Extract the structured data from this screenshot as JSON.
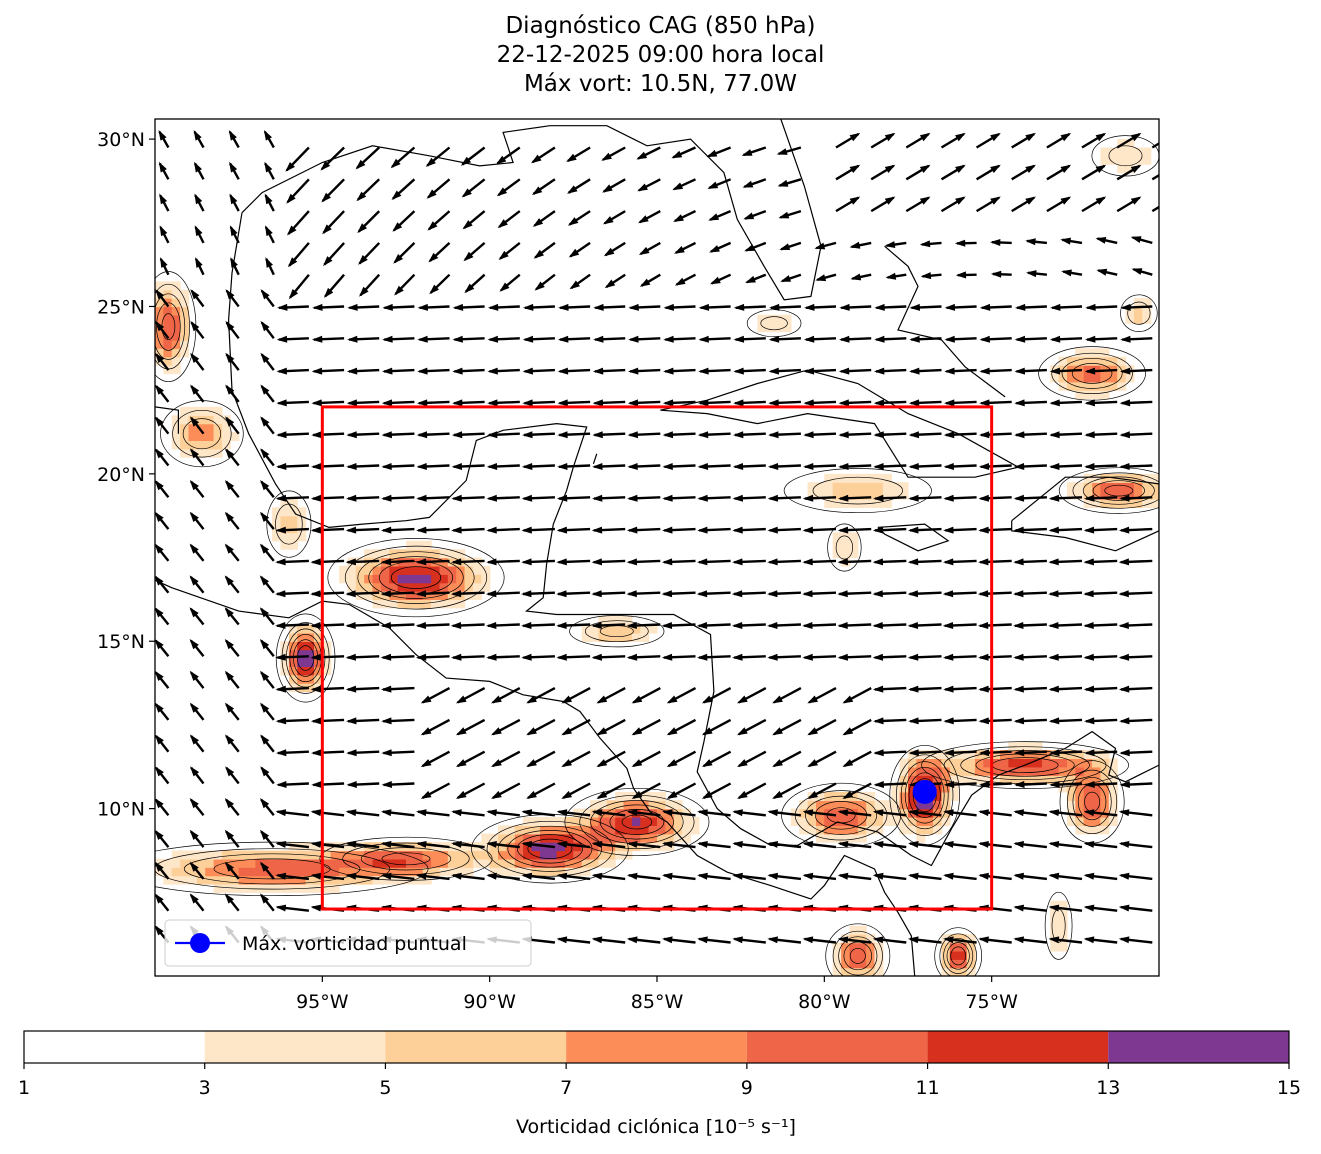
{
  "title": {
    "line1": "Diagnóstico CAG (850 hPa)",
    "line2": "22-12-2025 09:00 hora local",
    "line3": "Máx vort: 10.5N, 77.0W"
  },
  "map": {
    "lon_range": [
      -100,
      -70
    ],
    "lat_range": [
      5,
      30.6
    ],
    "x_ticks": [
      {
        "lon": -95,
        "label": "95°W"
      },
      {
        "lon": -90,
        "label": "90°W"
      },
      {
        "lon": -85,
        "label": "85°W"
      },
      {
        "lon": -80,
        "label": "80°W"
      },
      {
        "lon": -75,
        "label": "75°W"
      }
    ],
    "y_ticks": [
      {
        "lat": 30,
        "label": "30°N"
      },
      {
        "lat": 25,
        "label": "25°N"
      },
      {
        "lat": 20,
        "label": "20°N"
      },
      {
        "lat": 15,
        "label": "15°N"
      },
      {
        "lat": 10,
        "label": "10°N"
      }
    ],
    "box": {
      "lon_min": -95,
      "lon_max": -75,
      "lat_min": 7,
      "lat_max": 22,
      "color": "#ff0000"
    },
    "max_point": {
      "lat": 10.5,
      "lon": -77.0,
      "color": "#0000ff"
    },
    "legend_label": "Máx. vorticidad puntual"
  },
  "vorticity_blobs": [
    {
      "lon": -92.2,
      "lat": 16.9,
      "rx": 1.8,
      "ry": 0.8,
      "peak": 14
    },
    {
      "lon": -95.5,
      "lat": 14.5,
      "rx": 0.6,
      "ry": 0.9,
      "peak": 14
    },
    {
      "lon": -99.6,
      "lat": 24.4,
      "rx": 0.6,
      "ry": 1.2,
      "peak": 11
    },
    {
      "lon": -98.6,
      "lat": 21.2,
      "rx": 1.0,
      "ry": 0.8,
      "peak": 8
    },
    {
      "lon": -88.2,
      "lat": 8.8,
      "rx": 1.6,
      "ry": 0.7,
      "peak": 14
    },
    {
      "lon": -85.6,
      "lat": 9.6,
      "rx": 1.5,
      "ry": 0.7,
      "peak": 13
    },
    {
      "lon": -96.5,
      "lat": 8.2,
      "rx": 3.5,
      "ry": 0.6,
      "peak": 10
    },
    {
      "lon": -92.5,
      "lat": 8.5,
      "rx": 2.0,
      "ry": 0.5,
      "peak": 9
    },
    {
      "lon": -77.0,
      "lat": 10.4,
      "rx": 0.7,
      "ry": 1.0,
      "peak": 15
    },
    {
      "lon": -79.5,
      "lat": 9.8,
      "rx": 1.3,
      "ry": 0.7,
      "peak": 11
    },
    {
      "lon": -74.0,
      "lat": 11.3,
      "rx": 2.2,
      "ry": 0.5,
      "peak": 12
    },
    {
      "lon": -72.0,
      "lat": 10.2,
      "rx": 0.7,
      "ry": 0.9,
      "peak": 11
    },
    {
      "lon": -71.2,
      "lat": 19.5,
      "rx": 1.3,
      "ry": 0.5,
      "peak": 11
    },
    {
      "lon": -72.0,
      "lat": 23.0,
      "rx": 1.2,
      "ry": 0.6,
      "peak": 10
    },
    {
      "lon": -70.6,
      "lat": 24.8,
      "rx": 0.5,
      "ry": 0.5,
      "peak": 6
    },
    {
      "lon": -79.0,
      "lat": 19.5,
      "rx": 2.0,
      "ry": 0.6,
      "peak": 6
    },
    {
      "lon": -79.4,
      "lat": 17.8,
      "rx": 0.5,
      "ry": 0.7,
      "peak": 5
    },
    {
      "lon": -86.2,
      "lat": 15.3,
      "rx": 1.2,
      "ry": 0.4,
      "peak": 7
    },
    {
      "lon": -79.0,
      "lat": 5.6,
      "rx": 0.7,
      "ry": 0.7,
      "peak": 11
    },
    {
      "lon": -76.0,
      "lat": 5.6,
      "rx": 0.5,
      "ry": 0.6,
      "peak": 12
    },
    {
      "lon": -96.0,
      "lat": 18.5,
      "rx": 0.6,
      "ry": 0.9,
      "peak": 6
    },
    {
      "lon": -81.5,
      "lat": 24.5,
      "rx": 0.8,
      "ry": 0.4,
      "peak": 5
    },
    {
      "lon": -73.0,
      "lat": 6.5,
      "rx": 0.4,
      "ry": 1.0,
      "peak": 5
    },
    {
      "lon": -71.0,
      "lat": 29.5,
      "rx": 1.0,
      "ry": 0.6,
      "peak": 5
    }
  ],
  "colorbar": {
    "label": "Vorticidad ciclónica [10⁻⁵ s⁻¹]",
    "levels": [
      1,
      3,
      5,
      7,
      9,
      11,
      13,
      15
    ],
    "tick_labels": [
      "1",
      "3",
      "5",
      "7",
      "9",
      "11",
      "13",
      "15"
    ],
    "colors": [
      "#ffffff",
      "#fee6c9",
      "#fdd09a",
      "#fc8d59",
      "#ef6548",
      "#d7301f",
      "#7f3891"
    ]
  }
}
